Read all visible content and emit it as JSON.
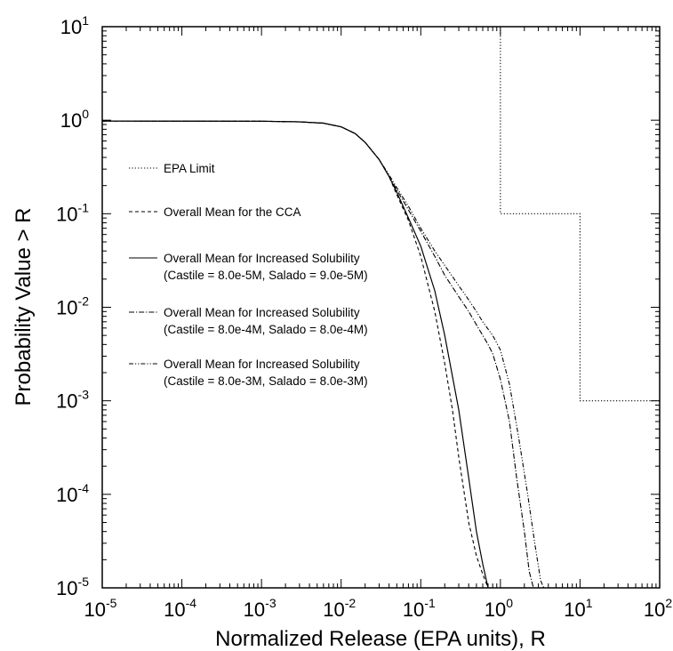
{
  "chart_data": {
    "type": "line",
    "title": "",
    "xlabel": "Normalized Release (EPA units), R",
    "ylabel": "Probability Value > R",
    "xscale": "log",
    "yscale": "log",
    "xlim": [
      1e-05,
      100
    ],
    "ylim": [
      1e-05,
      10
    ],
    "grid": false,
    "legend_position": "left",
    "x_ticks": [
      {
        "base": "10",
        "exp": "-5",
        "value": 1e-05
      },
      {
        "base": "10",
        "exp": "-4",
        "value": 0.0001
      },
      {
        "base": "10",
        "exp": "-3",
        "value": 0.001
      },
      {
        "base": "10",
        "exp": "-2",
        "value": 0.01
      },
      {
        "base": "10",
        "exp": "-1",
        "value": 0.1
      },
      {
        "base": "10",
        "exp": "0",
        "value": 1
      },
      {
        "base": "10",
        "exp": "1",
        "value": 10
      },
      {
        "base": "10",
        "exp": "2",
        "value": 100
      }
    ],
    "y_ticks": [
      {
        "base": "10",
        "exp": "-5",
        "value": 1e-05
      },
      {
        "base": "10",
        "exp": "-4",
        "value": 0.0001
      },
      {
        "base": "10",
        "exp": "-3",
        "value": 0.001
      },
      {
        "base": "10",
        "exp": "-2",
        "value": 0.01
      },
      {
        "base": "10",
        "exp": "-1",
        "value": 0.1
      },
      {
        "base": "10",
        "exp": "0",
        "value": 1
      },
      {
        "base": "10",
        "exp": "1",
        "value": 10
      }
    ],
    "series": [
      {
        "name": "EPA Limit",
        "style": "dotted",
        "points": [
          [
            1,
            10
          ],
          [
            1,
            0.1
          ],
          [
            10,
            0.1
          ],
          [
            10,
            0.001
          ],
          [
            100,
            0.001
          ]
        ]
      },
      {
        "name": "Overall Mean for the CCA",
        "style": "dashed",
        "points": [
          [
            1e-05,
            0.98
          ],
          [
            0.001,
            0.975
          ],
          [
            0.003,
            0.96
          ],
          [
            0.006,
            0.93
          ],
          [
            0.01,
            0.85
          ],
          [
            0.015,
            0.72
          ],
          [
            0.02,
            0.58
          ],
          [
            0.03,
            0.38
          ],
          [
            0.04,
            0.25
          ],
          [
            0.05,
            0.16
          ],
          [
            0.07,
            0.085
          ],
          [
            0.1,
            0.035
          ],
          [
            0.15,
            0.009
          ],
          [
            0.2,
            0.0025
          ],
          [
            0.25,
            0.0008
          ],
          [
            0.3,
            0.00025
          ],
          [
            0.4,
            5e-05
          ],
          [
            0.5,
            2.2e-05
          ],
          [
            0.6,
            1.4e-05
          ],
          [
            0.7,
            1e-05
          ]
        ]
      },
      {
        "name": "Overall Mean for Increased Solubility (Castile = 8.0e-5M, Salado = 9.0e-5M)",
        "style": "solid",
        "points": [
          [
            1e-05,
            0.98
          ],
          [
            0.001,
            0.975
          ],
          [
            0.003,
            0.96
          ],
          [
            0.006,
            0.93
          ],
          [
            0.01,
            0.85
          ],
          [
            0.015,
            0.72
          ],
          [
            0.02,
            0.58
          ],
          [
            0.03,
            0.38
          ],
          [
            0.04,
            0.25
          ],
          [
            0.05,
            0.17
          ],
          [
            0.07,
            0.09
          ],
          [
            0.1,
            0.045
          ],
          [
            0.15,
            0.015
          ],
          [
            0.2,
            0.005
          ],
          [
            0.3,
            0.0008
          ],
          [
            0.4,
            0.00015
          ],
          [
            0.5,
            4e-05
          ],
          [
            0.6,
            1.8e-05
          ],
          [
            0.7,
            1e-05
          ]
        ]
      },
      {
        "name": "Overall Mean for Increased Solubility (Castile = 8.0e-4M, Salado = 8.0e-4M)",
        "style": "dash-dot",
        "points": [
          [
            1e-05,
            0.98
          ],
          [
            0.001,
            0.975
          ],
          [
            0.003,
            0.96
          ],
          [
            0.006,
            0.93
          ],
          [
            0.01,
            0.85
          ],
          [
            0.015,
            0.72
          ],
          [
            0.02,
            0.58
          ],
          [
            0.03,
            0.38
          ],
          [
            0.04,
            0.25
          ],
          [
            0.05,
            0.18
          ],
          [
            0.07,
            0.11
          ],
          [
            0.1,
            0.065
          ],
          [
            0.15,
            0.035
          ],
          [
            0.2,
            0.022
          ],
          [
            0.3,
            0.013
          ],
          [
            0.4,
            0.009
          ],
          [
            0.5,
            0.0065
          ],
          [
            0.6,
            0.005
          ],
          [
            0.7,
            0.004
          ],
          [
            0.8,
            0.0032
          ],
          [
            1.0,
            0.0017
          ],
          [
            1.3,
            0.0006
          ],
          [
            1.6,
            0.00015
          ],
          [
            2.0,
            4e-05
          ],
          [
            2.3,
            1.5e-05
          ],
          [
            2.6,
            1e-05
          ]
        ]
      },
      {
        "name": "Overall Mean for Increased Solubility (Castile = 8.0e-3M, Salado = 8.0e-3M)",
        "style": "dash-dot-dot",
        "points": [
          [
            1e-05,
            0.98
          ],
          [
            0.001,
            0.975
          ],
          [
            0.003,
            0.96
          ],
          [
            0.006,
            0.93
          ],
          [
            0.01,
            0.85
          ],
          [
            0.015,
            0.72
          ],
          [
            0.02,
            0.58
          ],
          [
            0.03,
            0.38
          ],
          [
            0.04,
            0.26
          ],
          [
            0.05,
            0.19
          ],
          [
            0.07,
            0.12
          ],
          [
            0.1,
            0.07
          ],
          [
            0.15,
            0.04
          ],
          [
            0.2,
            0.028
          ],
          [
            0.3,
            0.017
          ],
          [
            0.4,
            0.012
          ],
          [
            0.5,
            0.009
          ],
          [
            0.6,
            0.007
          ],
          [
            0.8,
            0.005
          ],
          [
            1.0,
            0.0035
          ],
          [
            1.3,
            0.0015
          ],
          [
            1.7,
            0.0004
          ],
          [
            2.2,
            0.0001
          ],
          [
            2.7,
            3e-05
          ],
          [
            3.2,
            1.2e-05
          ],
          [
            3.5,
            1e-05
          ]
        ]
      }
    ],
    "legend": [
      {
        "lines": [
          "EPA Limit"
        ],
        "style": "dotted"
      },
      {
        "lines": [
          "Overall Mean for the CCA"
        ],
        "style": "dashed"
      },
      {
        "lines": [
          "Overall Mean for Increased Solubility",
          "(Castile = 8.0e-5M, Salado = 9.0e-5M)"
        ],
        "style": "solid"
      },
      {
        "lines": [
          "Overall Mean for Increased Solubility",
          "(Castile = 8.0e-4M, Salado = 8.0e-4M)"
        ],
        "style": "dash-dot"
      },
      {
        "lines": [
          "Overall Mean for Increased Solubility",
          "(Castile = 8.0e-3M, Salado = 8.0e-3M)"
        ],
        "style": "dash-dot-dot"
      }
    ]
  }
}
